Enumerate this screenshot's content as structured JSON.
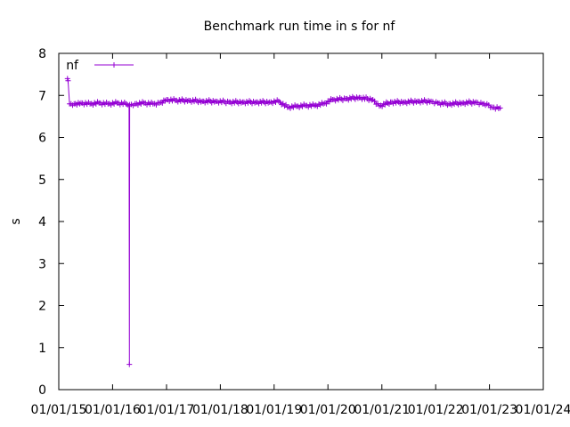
{
  "chart_data": {
    "type": "line",
    "title": "Benchmark run time in s for nf",
    "xlabel": "",
    "ylabel": "s",
    "ylim": [
      0,
      8
    ],
    "xlim": [
      "2015-01-01",
      "2024-01-01"
    ],
    "yticks": [
      0,
      1,
      2,
      3,
      4,
      5,
      6,
      7,
      8
    ],
    "xticks": [
      "01/01/15",
      "01/01/16",
      "01/01/17",
      "01/01/18",
      "01/01/19",
      "01/01/20",
      "01/01/21",
      "01/01/22",
      "01/01/23",
      "01/01/24"
    ],
    "legend_position": "top-left",
    "grid": false,
    "series": [
      {
        "name": "nf",
        "color": "#9400d3",
        "marker": "plus",
        "x": [
          "2015-03-01",
          "2015-03-05",
          "2015-03-15",
          "2015-04-15",
          "2015-06-01",
          "2015-08-01",
          "2015-10-01",
          "2015-12-01",
          "2016-02-01",
          "2016-04-01",
          "2016-04-22",
          "2016-04-24",
          "2016-04-26",
          "2016-06-01",
          "2016-08-01",
          "2016-10-01",
          "2016-11-15",
          "2017-01-01",
          "2017-03-01",
          "2017-06-01",
          "2017-09-01",
          "2017-12-01",
          "2018-03-01",
          "2018-06-01",
          "2018-09-01",
          "2018-12-01",
          "2019-02-01",
          "2019-04-01",
          "2019-06-01",
          "2019-08-01",
          "2019-10-01",
          "2019-12-01",
          "2020-02-01",
          "2020-05-01",
          "2020-08-01",
          "2020-11-01",
          "2020-12-15",
          "2021-03-01",
          "2021-06-01",
          "2021-09-01",
          "2021-12-01",
          "2022-01-15",
          "2022-04-01",
          "2022-07-01",
          "2022-10-01",
          "2022-11-15",
          "2022-12-15",
          "2023-01-20",
          "2023-03-15"
        ],
        "y": [
          7.4,
          7.35,
          6.8,
          6.8,
          6.82,
          6.8,
          6.82,
          6.8,
          6.82,
          6.8,
          6.75,
          0.6,
          6.78,
          6.8,
          6.82,
          6.8,
          6.82,
          6.9,
          6.88,
          6.88,
          6.86,
          6.86,
          6.84,
          6.84,
          6.84,
          6.84,
          6.86,
          6.72,
          6.74,
          6.76,
          6.76,
          6.8,
          6.9,
          6.92,
          6.95,
          6.9,
          6.75,
          6.84,
          6.84,
          6.86,
          6.86,
          6.82,
          6.8,
          6.82,
          6.84,
          6.8,
          6.8,
          6.72,
          6.7
        ]
      }
    ]
  }
}
